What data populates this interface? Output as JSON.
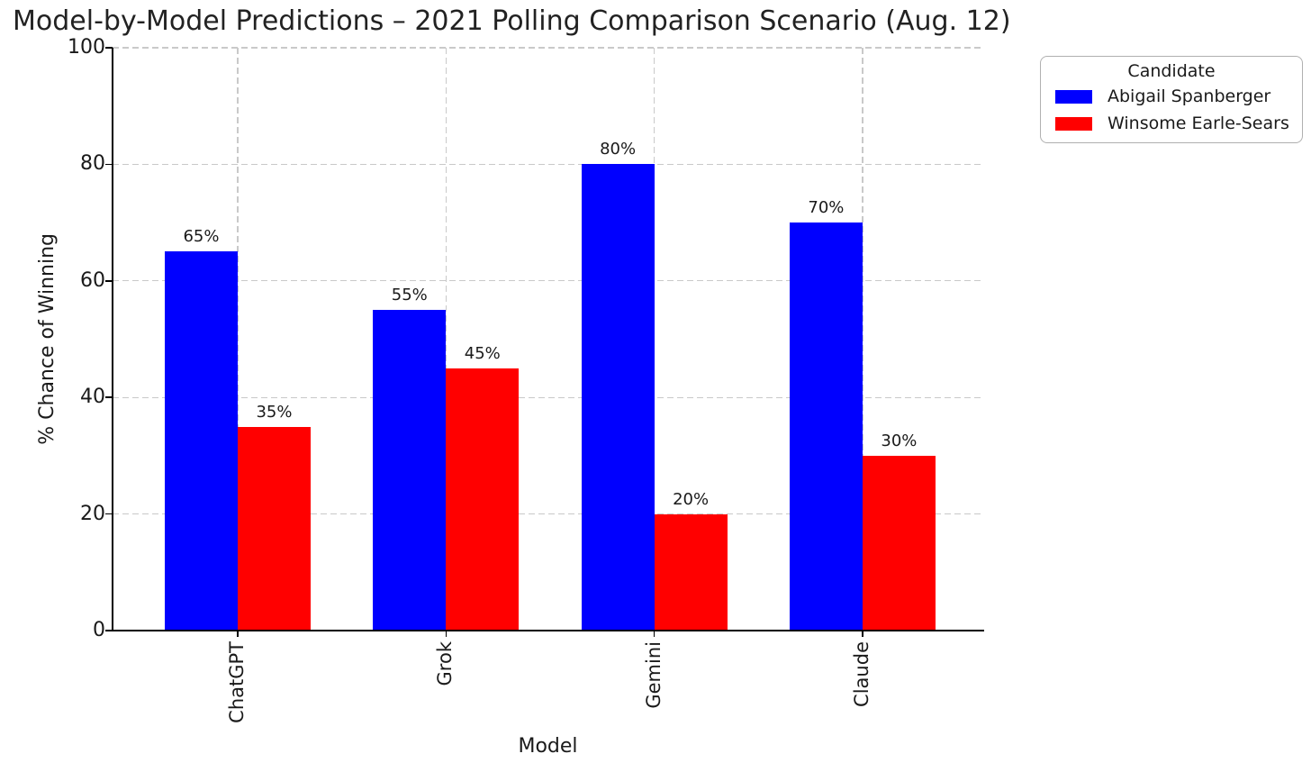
{
  "chart_data": {
    "type": "bar",
    "title": "Model-by-Model Predictions – 2021 Polling Comparison Scenario (Aug. 12)",
    "xlabel": "Model",
    "ylabel": "% Chance of Winning",
    "categories": [
      "ChatGPT",
      "Grok",
      "Gemini",
      "Claude"
    ],
    "series": [
      {
        "name": "Abigail Spanberger",
        "color": "#0000ff",
        "values": [
          65,
          55,
          80,
          70
        ],
        "value_labels": [
          "65%",
          "55%",
          "80%",
          "70%"
        ]
      },
      {
        "name": "Winsome Earle-Sears",
        "color": "#ff0000",
        "values": [
          35,
          45,
          20,
          30
        ],
        "value_labels": [
          "35%",
          "45%",
          "20%",
          "30%"
        ]
      }
    ],
    "ylim": [
      0,
      100
    ],
    "yticks": [
      0,
      20,
      40,
      60,
      80,
      100
    ],
    "grid": "dashed light-gray, horizontal and vertical",
    "legend_position": "upper right, outside plot"
  },
  "legend": {
    "title": "Candidate",
    "items": [
      {
        "label": "Abigail Spanberger",
        "color": "#0000ff"
      },
      {
        "label": "Winsome Earle-Sears",
        "color": "#ff0000"
      }
    ]
  },
  "colors": {
    "bar_blue": "#0000ff",
    "bar_red": "#ff0000",
    "gridline": "#c9c9c9",
    "spine": "#000000",
    "text": "#1a1a1a",
    "background": "#ffffff"
  }
}
